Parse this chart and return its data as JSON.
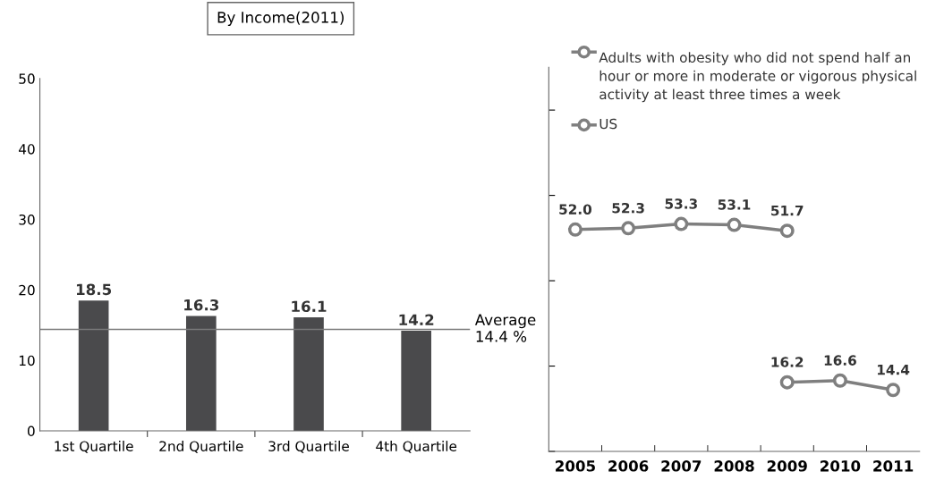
{
  "chart_data": [
    {
      "type": "bar",
      "title": "By Income(2011)",
      "categories": [
        "1st Quartile",
        "2nd Quartile",
        "3rd Quartile",
        "4th Quartile"
      ],
      "values": [
        18.5,
        16.3,
        16.1,
        14.2
      ],
      "color": "#4a4a4c",
      "ylim": [
        0,
        50
      ],
      "yticks": [
        0,
        10,
        20,
        30,
        40,
        50
      ],
      "data_labels": true,
      "grid": false,
      "ref_lines": [
        {
          "axis": "y",
          "value": 14.4,
          "label": "Average\n14.4 %",
          "color": "#7a7a7a",
          "line_style": "solid"
        }
      ]
    },
    {
      "type": "line",
      "categories": [
        "2005",
        "2006",
        "2007",
        "2008",
        "2009",
        "2010",
        "2011"
      ],
      "series": [
        {
          "name": "Adults with obesity who did not spend half an hour or more in moderate or vigorous physical activity at least three times a week",
          "color": "#7f7f7f",
          "values": [
            52.0,
            52.3,
            53.3,
            53.1,
            51.7,
            null,
            null
          ],
          "value_labels": [
            "52.0",
            "52.3",
            "53.3",
            "53.1",
            "51.7",
            null,
            null
          ]
        },
        {
          "name": "US",
          "color": "#7f7f7f",
          "values": [
            null,
            null,
            null,
            null,
            16.2,
            16.6,
            14.4
          ],
          "value_labels": [
            null,
            null,
            null,
            null,
            "16.2",
            "16.6",
            "14.4"
          ]
        }
      ],
      "ylim": [
        0,
        90
      ],
      "yticks": [
        {
          "value": 0,
          "label": null
        },
        {
          "value": 20,
          "label": null
        },
        {
          "value": 40,
          "label": null
        },
        {
          "value": 60,
          "label": null
        },
        {
          "value": 80,
          "label": null
        }
      ],
      "tick_labels": "x",
      "marker": "circle",
      "line_style": "solid",
      "grid": false,
      "legend": "top right"
    }
  ]
}
